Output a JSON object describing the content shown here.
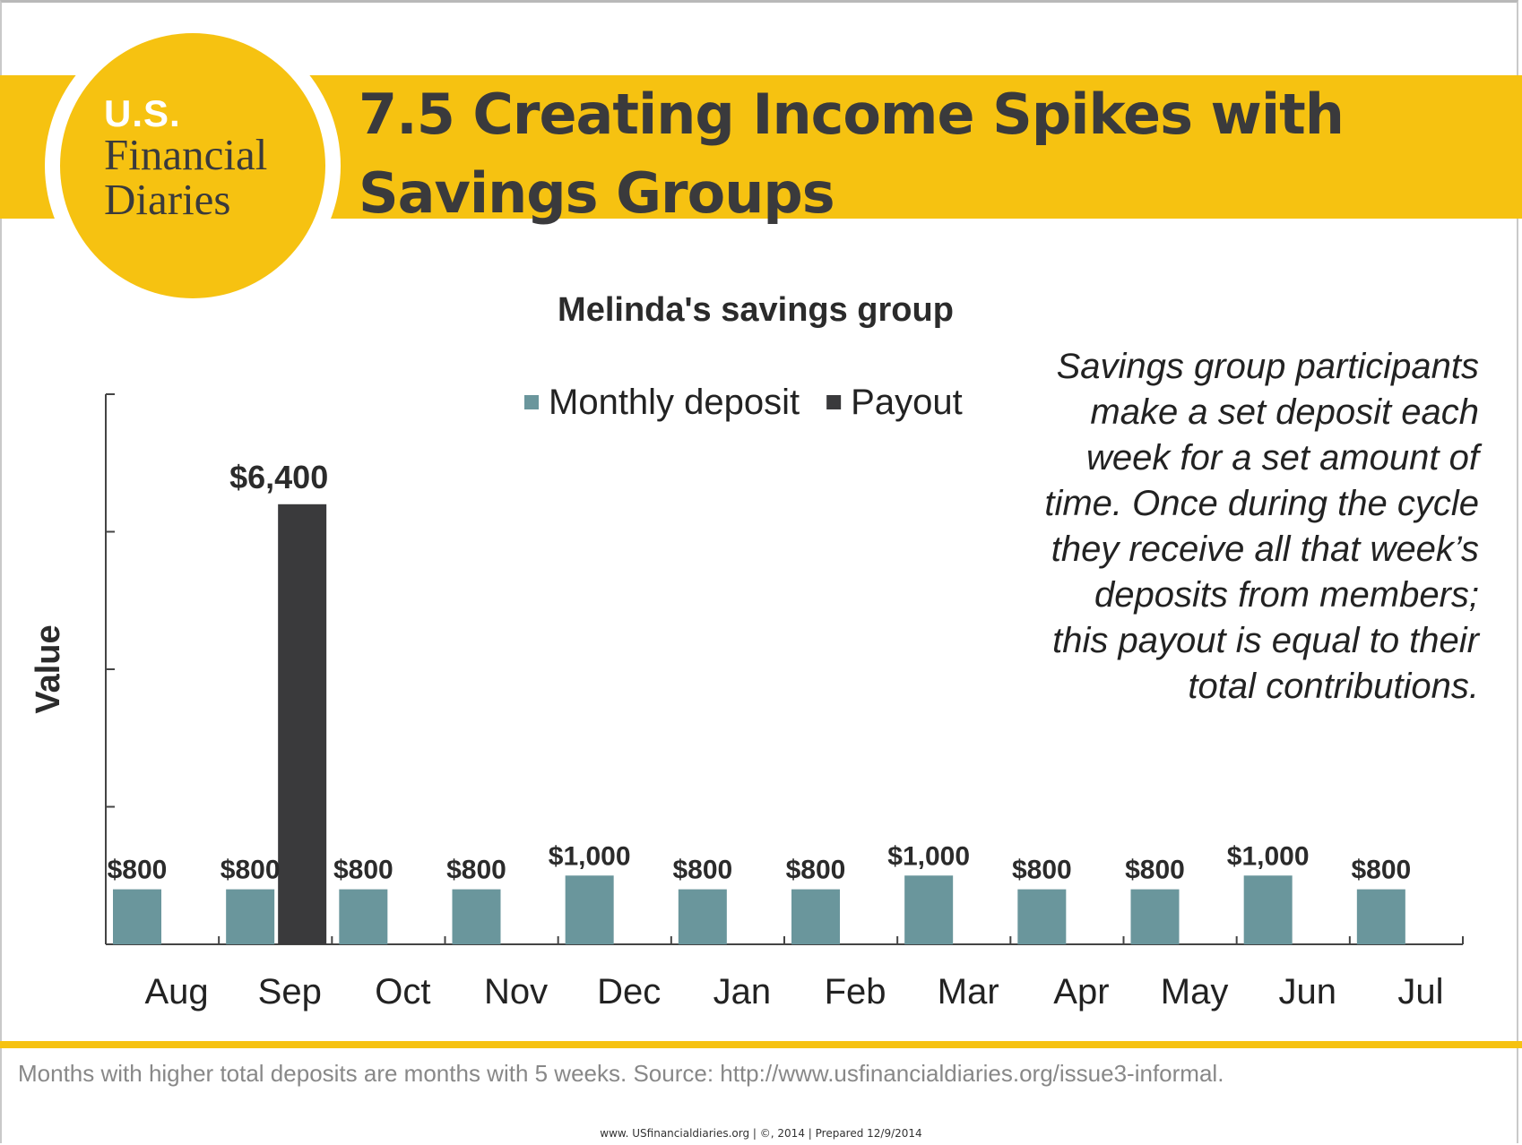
{
  "logo": {
    "us": "U.S.",
    "name": "Financial Diaries"
  },
  "header": {
    "title": "7.5 Creating Income Spikes with Savings Groups"
  },
  "side_note": "Savings group participants make a set deposit each week for a set amount of time. Once during the cycle they receive all that week’s deposits from members; this payout is equal to their total contributions.",
  "footnote": "Months with higher total deposits are months with 5 weeks. Source: http://www.usfinancialdiaries.org/issue3-informal.",
  "footer": "www. USfinancialdiaries.org  |  ©, 2014 | Prepared 12/9/2014",
  "colors": {
    "brand_yellow": "#f6c211",
    "deposit": "#6a969c",
    "payout": "#3a3a3c"
  },
  "chart_data": {
    "type": "bar",
    "title": "Melinda's savings group",
    "ylabel": "Value",
    "xlabel": "",
    "categories": [
      "Aug",
      "Sep",
      "Oct",
      "Nov",
      "Dec",
      "Jan",
      "Feb",
      "Mar",
      "Apr",
      "May",
      "Jun",
      "Jul"
    ],
    "series": [
      {
        "name": "Monthly deposit",
        "color": "#6a969c",
        "values": [
          800,
          800,
          800,
          800,
          1000,
          800,
          800,
          1000,
          800,
          800,
          1000,
          800
        ],
        "labels": [
          "$800",
          "$800",
          "$800",
          "$800",
          "$1,000",
          "$800",
          "$800",
          "$1,000",
          "$800",
          "$800",
          "$1,000",
          "$800"
        ]
      },
      {
        "name": "Payout",
        "color": "#3a3a3c",
        "values": [
          null,
          6400,
          null,
          null,
          null,
          null,
          null,
          null,
          null,
          null,
          null,
          null
        ],
        "labels": [
          null,
          "$6,400",
          null,
          null,
          null,
          null,
          null,
          null,
          null,
          null,
          null,
          null
        ]
      }
    ],
    "ylim": [
      0,
      8000
    ],
    "y_tick_values": [
      0,
      2000,
      4000,
      6000,
      8000
    ],
    "y_tick_labels_shown": false,
    "grid": false,
    "legend_position": "top-center"
  }
}
